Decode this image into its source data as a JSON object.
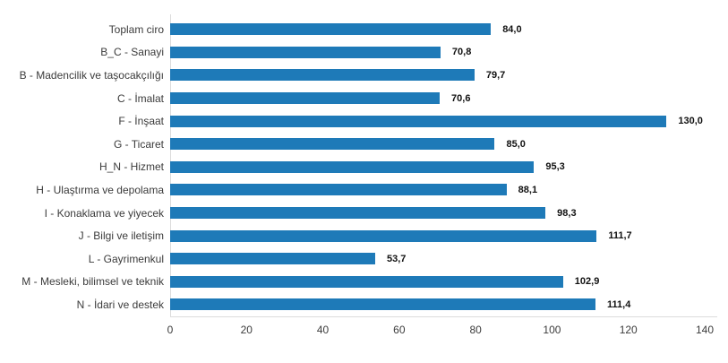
{
  "chart_data": {
    "type": "bar",
    "orientation": "horizontal",
    "title": "",
    "categories": [
      "Toplam ciro",
      "B_C - Sanayi",
      "B - Madencilik ve taşocakçılığı",
      "C - İmalat",
      "F - İnşaat",
      "G - Ticaret",
      "H_N - Hizmet",
      "H - Ulaştırma ve depolama",
      "I - Konaklama ve yiyecek",
      "J - Bilgi ve iletişim",
      "L - Gayrimenkul",
      "M - Mesleki, bilimsel ve teknik",
      "N - İdari ve destek"
    ],
    "values": [
      84.0,
      70.8,
      79.7,
      70.6,
      130.0,
      85.0,
      95.3,
      88.1,
      98.3,
      111.7,
      53.7,
      102.9,
      111.4
    ],
    "value_labels": [
      "84,0",
      "70,8",
      "79,7",
      "70,6",
      "130,0",
      "85,0",
      "95,3",
      "88,1",
      "98,3",
      "111,7",
      "53,7",
      "102,9",
      "111,4"
    ],
    "x_tick_labels": [
      "0",
      "20",
      "40",
      "60",
      "80",
      "100",
      "120",
      "140"
    ],
    "x_tick_values": [
      0,
      20,
      40,
      60,
      80,
      100,
      120,
      140
    ],
    "xlim": [
      0,
      140
    ],
    "grid": false,
    "legend": false,
    "colors": {
      "bar": "#1e7ab8",
      "axis_line": "#dcdcdc",
      "category_label": "#3b3b3b",
      "value_label": "#111111",
      "background": "#ffffff"
    }
  }
}
